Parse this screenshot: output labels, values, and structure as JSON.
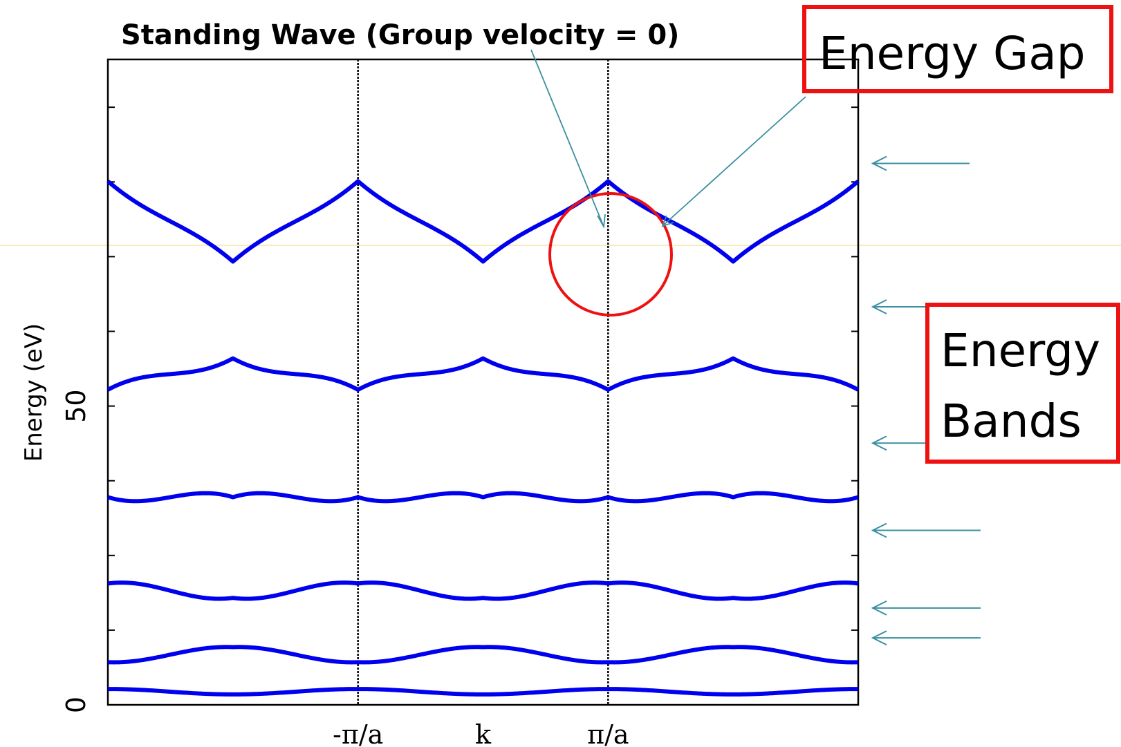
{
  "chart_data": {
    "type": "line",
    "title": "Standing Wave (Group velocity = 0)",
    "ylabel": "Energy (eV)",
    "xlabel": "",
    "ylim": [
      0,
      108
    ],
    "yticks": [
      {
        "value": 0,
        "label": "0"
      },
      {
        "value": 50,
        "label": "50"
      }
    ],
    "xticks": [
      "-π/a",
      "k",
      "π/a"
    ],
    "xlim": [
      -6,
      6
    ],
    "zone_boundaries": [
      -2,
      2
    ],
    "grid": false,
    "line_color": "#0000ee",
    "bands": [
      {
        "min": 1.7,
        "max": 2.7
      },
      {
        "min": 6.3,
        "max": 10.5
      },
      {
        "min": 15.1,
        "max": 23.1
      },
      {
        "min": 28.4,
        "max": 41.1
      },
      {
        "min": 46.6,
        "max": 64.1
      },
      {
        "min": 69.7,
        "max": 92.1
      }
    ]
  },
  "annotations": {
    "energy_gap_label": "Energy Gap",
    "energy_bands_label_line1": "Energy",
    "energy_bands_label_line2": "Bands",
    "box_color": "#ee1111",
    "circle_color": "#ee1111",
    "arrow_color": "#3a8fa0",
    "band_arrows": [
      90.6,
      66.6,
      43.8,
      29.2,
      16.2,
      11.2
    ]
  }
}
